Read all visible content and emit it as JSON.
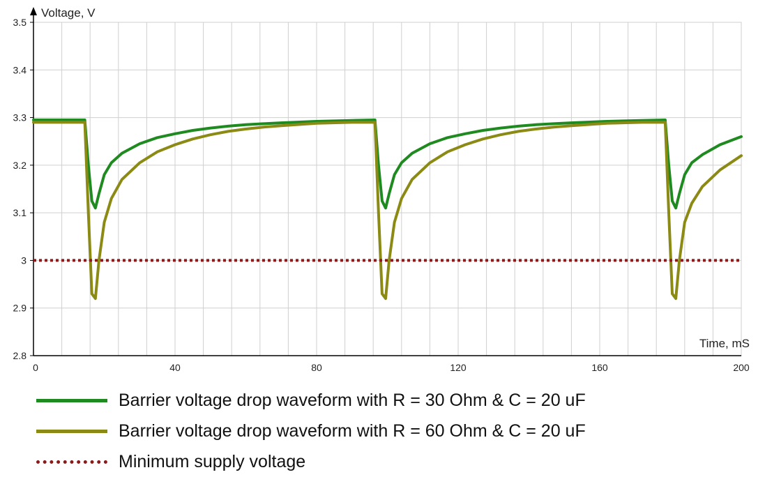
{
  "chart_data": {
    "type": "line",
    "x_unit": "mS",
    "xlabel": "Time, mS",
    "ylabel": "Voltage, V",
    "xlim": [
      0,
      200
    ],
    "ylim": [
      2.8,
      3.5
    ],
    "x_ticks": [
      0,
      40,
      80,
      120,
      160,
      200
    ],
    "y_ticks": [
      2.8,
      2.9,
      3,
      3.1,
      3.2,
      3.3,
      3.4,
      3.5
    ],
    "y_tick_labels": [
      "2.8",
      "2.9",
      "3",
      "3.1",
      "3.2",
      "3.3",
      "3.4",
      "3.5"
    ],
    "x_tick_labels": [
      "0",
      "40",
      "80",
      "120",
      "160",
      "200"
    ],
    "grid": true,
    "legend_position": "bottom",
    "series": [
      {
        "name": "Barrier voltage drop waveform with R = 30 Ohm & C = 20 uF",
        "color": "#1f8a1f",
        "style": "solid",
        "x": [
          0,
          14.5,
          15.5,
          16.5,
          17.5,
          18.5,
          20,
          22,
          25,
          30,
          35,
          40,
          45,
          50,
          55,
          60,
          65,
          70,
          80,
          90,
          96.5,
          97.5,
          98.5,
          99.5,
          100.5,
          102,
          104,
          107,
          112,
          117,
          122,
          127,
          132,
          137,
          142,
          147,
          152,
          162,
          172,
          178.5,
          179.5,
          180.5,
          181.5,
          182.5,
          184,
          186,
          189,
          194,
          200
        ],
        "y": [
          3.295,
          3.295,
          3.2,
          3.125,
          3.11,
          3.14,
          3.18,
          3.205,
          3.225,
          3.245,
          3.258,
          3.266,
          3.273,
          3.278,
          3.282,
          3.285,
          3.287,
          3.289,
          3.292,
          3.294,
          3.295,
          3.2,
          3.125,
          3.11,
          3.14,
          3.18,
          3.205,
          3.225,
          3.245,
          3.258,
          3.266,
          3.273,
          3.278,
          3.282,
          3.285,
          3.287,
          3.289,
          3.292,
          3.294,
          3.295,
          3.2,
          3.125,
          3.11,
          3.14,
          3.18,
          3.205,
          3.222,
          3.243,
          3.26
        ]
      },
      {
        "name": "Barrier voltage drop waveform with R = 60 Ohm & C = 20 uF",
        "color": "#8a8a14",
        "style": "solid",
        "x": [
          0,
          14.5,
          15.5,
          16.5,
          17.5,
          18.5,
          20,
          22,
          25,
          30,
          35,
          40,
          45,
          50,
          55,
          60,
          65,
          70,
          80,
          90,
          96.5,
          97.5,
          98.5,
          99.5,
          100.5,
          102,
          104,
          107,
          112,
          117,
          122,
          127,
          132,
          137,
          142,
          147,
          152,
          162,
          172,
          178.5,
          179.5,
          180.5,
          181.5,
          182.5,
          184,
          186,
          189,
          194,
          200
        ],
        "y": [
          3.29,
          3.29,
          3.1,
          2.93,
          2.92,
          3.0,
          3.08,
          3.13,
          3.17,
          3.205,
          3.228,
          3.243,
          3.255,
          3.264,
          3.271,
          3.276,
          3.28,
          3.283,
          3.288,
          3.29,
          3.29,
          3.1,
          2.93,
          2.92,
          3.0,
          3.08,
          3.13,
          3.17,
          3.205,
          3.228,
          3.243,
          3.255,
          3.264,
          3.271,
          3.276,
          3.28,
          3.283,
          3.288,
          3.29,
          3.29,
          3.1,
          2.93,
          2.92,
          3.0,
          3.08,
          3.12,
          3.155,
          3.19,
          3.22
        ]
      },
      {
        "name": "Minimum supply voltage",
        "color": "#8b1a1a",
        "style": "dotted",
        "x": [
          0,
          200
        ],
        "y": [
          3.0,
          3.0
        ]
      }
    ]
  }
}
